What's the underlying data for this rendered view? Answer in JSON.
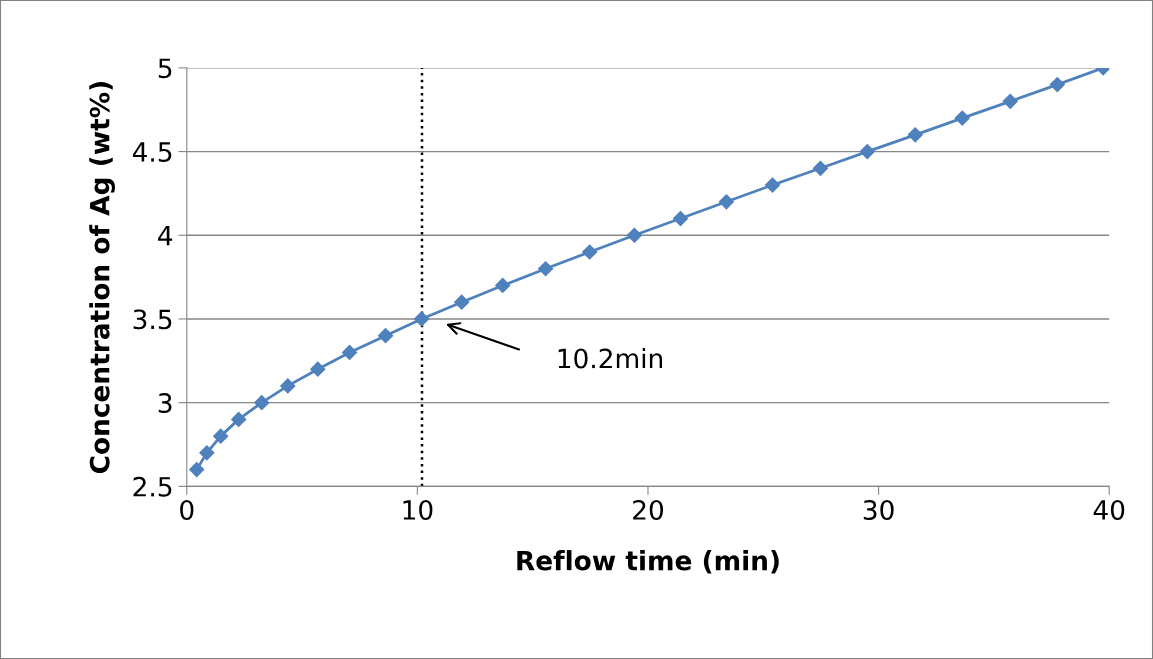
{
  "chart_data": {
    "type": "line",
    "xlabel": "Reflow time (min)",
    "ylabel": "Concentration of Ag (wt%)",
    "x": [
      0.43,
      0.87,
      1.47,
      2.25,
      3.25,
      4.38,
      5.68,
      7.06,
      8.62,
      10.18,
      11.92,
      13.7,
      15.56,
      17.47,
      19.41,
      21.41,
      23.4,
      25.4,
      27.48,
      29.51,
      31.59,
      33.63,
      35.71,
      37.75,
      39.74
    ],
    "series": [
      {
        "color": "#4f81bd",
        "values": [
          2.6,
          2.7,
          2.8,
          2.9,
          3.0,
          3.1,
          3.2,
          3.3,
          3.4,
          3.5,
          3.6,
          3.7,
          3.8,
          3.9,
          4.0,
          4.1,
          4.2,
          4.3,
          4.4,
          4.5,
          4.6,
          4.7,
          4.8,
          4.9,
          5.0
        ]
      }
    ],
    "xlim": [
      0,
      40
    ],
    "xticks": [
      0,
      10,
      20,
      30,
      40
    ],
    "ylim": [
      2.5,
      5
    ],
    "yticks": [
      2.5,
      3,
      3.5,
      4,
      4.5,
      5
    ],
    "grid": "y",
    "marker": "diamond",
    "line_style": "solid",
    "legend": false,
    "ref_lines": [
      {
        "axis": "x",
        "value": 10.2,
        "color": "#000000",
        "line_style": "dotted"
      }
    ],
    "annotations": [
      "10.2min"
    ]
  }
}
